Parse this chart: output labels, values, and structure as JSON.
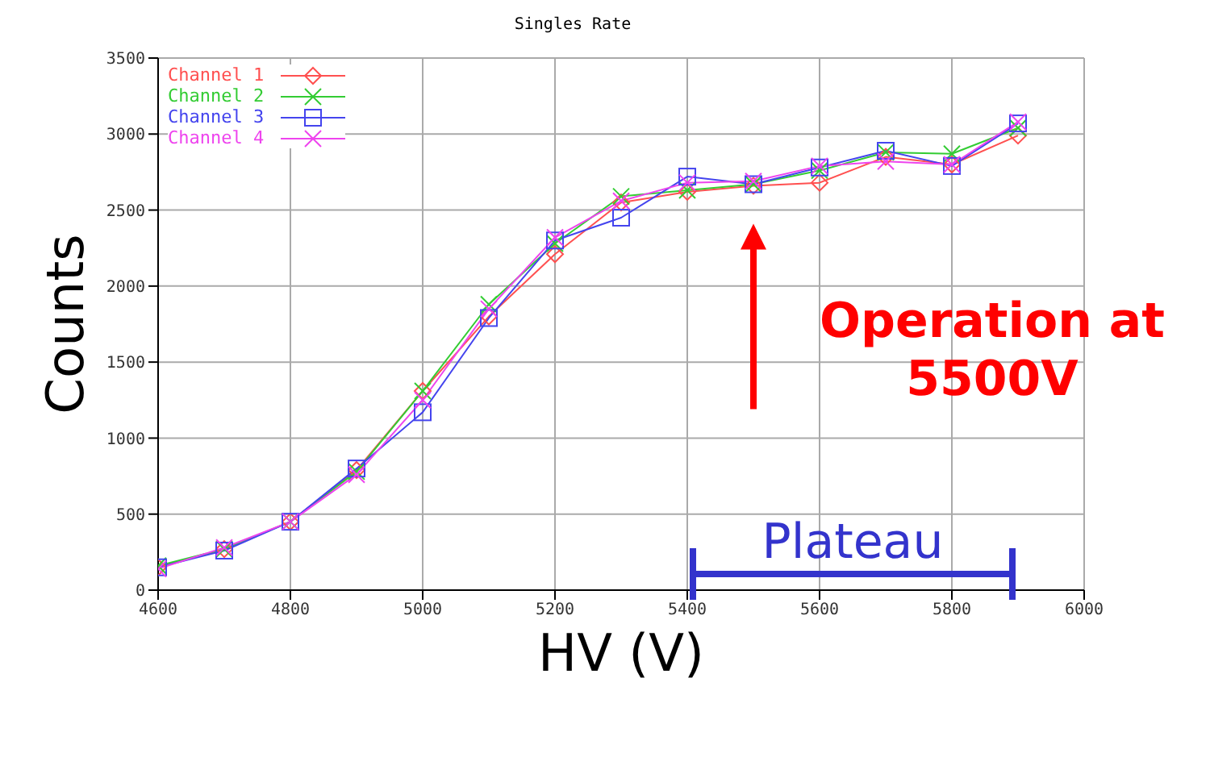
{
  "chart_data": {
    "type": "line",
    "title": "Singles Rate",
    "xlabel": "HV (V)",
    "ylabel": "Counts",
    "x": [
      4600,
      4700,
      4800,
      4900,
      5000,
      5100,
      5200,
      5300,
      5400,
      5500,
      5600,
      5700,
      5800,
      5900
    ],
    "xlim": [
      4600,
      6000
    ],
    "xticks": [
      4600,
      4800,
      5000,
      5200,
      5400,
      5600,
      5800,
      6000
    ],
    "ylim": [
      0,
      3500
    ],
    "yticks": [
      0,
      500,
      1000,
      1500,
      2000,
      2500,
      3000,
      3500
    ],
    "grid": true,
    "legend": "top left",
    "series": [
      {
        "name": "Channel 1",
        "color": "#ff5050",
        "marker": "diamond",
        "values": [
          150,
          270,
          450,
          790,
          1310,
          1800,
          2210,
          2550,
          2620,
          2660,
          2680,
          2850,
          2800,
          2990
        ]
      },
      {
        "name": "Channel 2",
        "color": "#33cc33",
        "marker": "cross",
        "values": [
          160,
          270,
          450,
          780,
          1310,
          1880,
          2280,
          2590,
          2630,
          2670,
          2760,
          2880,
          2870,
          3040
        ]
      },
      {
        "name": "Channel 3",
        "color": "#4444ee",
        "marker": "square",
        "values": [
          150,
          260,
          450,
          800,
          1170,
          1790,
          2300,
          2450,
          2720,
          2670,
          2780,
          2890,
          2790,
          3070
        ]
      },
      {
        "name": "Channel 4",
        "color": "#ee44ee",
        "marker": "cross",
        "values": [
          140,
          280,
          450,
          760,
          1250,
          1850,
          2320,
          2560,
          2680,
          2690,
          2790,
          2820,
          2800,
          3080
        ]
      }
    ],
    "annotations": [
      {
        "text": "Operation at\n5500V",
        "x": 5500,
        "y": 2650
      },
      "Plateau"
    ]
  }
}
